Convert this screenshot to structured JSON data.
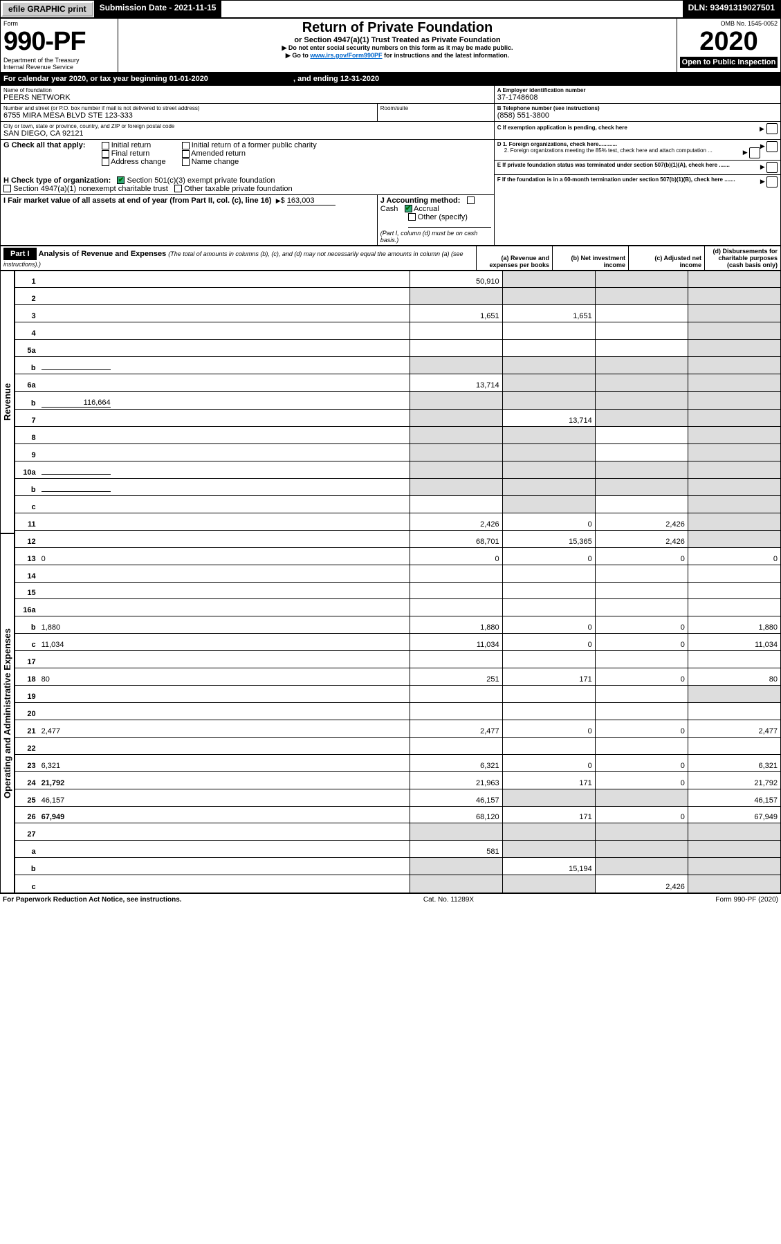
{
  "topbar": {
    "efile": "efile GRAPHIC print",
    "submission": "Submission Date - 2021-11-15",
    "dln": "DLN: 93491319027501"
  },
  "header": {
    "form_word": "Form",
    "form_no": "990-PF",
    "dept": "Department of the Treasury",
    "irs": "Internal Revenue Service",
    "title": "Return of Private Foundation",
    "subtitle": "or Section 4947(a)(1) Trust Treated as Private Foundation",
    "note1": "Do not enter social security numbers on this form as it may be made public.",
    "note2_pre": "Go to ",
    "note2_link": "www.irs.gov/Form990PF",
    "note2_post": " for instructions and the latest information.",
    "omb": "OMB No. 1545-0052",
    "year": "2020",
    "open": "Open to Public Inspection"
  },
  "calendar": {
    "pre": "For calendar year 2020, or tax year beginning ",
    "begin": "01-01-2020",
    "mid": ", and ending ",
    "end": "12-31-2020"
  },
  "entity": {
    "name_label": "Name of foundation",
    "name": "PEERS NETWORK",
    "addr_label": "Number and street (or P.O. box number if mail is not delivered to street address)",
    "addr": "6755 MIRA MESA BLVD STE 123-333",
    "room_label": "Room/suite",
    "room": "",
    "city_label": "City or town, state or province, country, and ZIP or foreign postal code",
    "city": "SAN DIEGO, CA  92121",
    "a_label": "A Employer identification number",
    "a_val": "37-1748608",
    "b_label": "B Telephone number (see instructions)",
    "b_val": "(858) 551-3800",
    "c_label": "C If exemption application is pending, check here",
    "d1": "D 1. Foreign organizations, check here............",
    "d2": "2. Foreign organizations meeting the 85% test, check here and attach computation ...",
    "e": "E If private foundation status was terminated under section 507(b)(1)(A), check here .......",
    "f": "F If the foundation is in a 60-month termination under section 507(b)(1)(B), check here .......",
    "g_label": "G Check all that apply:",
    "g_opts": [
      "Initial return",
      "Final return",
      "Address change",
      "Initial return of a former public charity",
      "Amended return",
      "Name change"
    ],
    "h_label": "H Check type of organization:",
    "h1": "Section 501(c)(3) exempt private foundation",
    "h2": "Section 4947(a)(1) nonexempt charitable trust",
    "h3": "Other taxable private foundation",
    "i_label": "I Fair market value of all assets at end of year (from Part II, col. (c), line 16)",
    "i_val": "163,003",
    "j_label": "J Accounting method:",
    "j_cash": "Cash",
    "j_accrual": "Accrual",
    "j_other": "Other (specify)",
    "j_note": "(Part I, column (d) must be on cash basis.)"
  },
  "part1": {
    "label": "Part I",
    "title": "Analysis of Revenue and Expenses",
    "paren": "(The total of amounts in columns (b), (c), and (d) may not necessarily equal the amounts in column (a) (see instructions).)",
    "cols": {
      "a": "(a) Revenue and expenses per books",
      "b": "(b) Net investment income",
      "c": "(c) Adjusted net income",
      "d": "(d) Disbursements for charitable purposes (cash basis only)"
    }
  },
  "sidebar": {
    "rev": "Revenue",
    "exp": "Operating and Administrative Expenses"
  },
  "rows": [
    {
      "n": "1",
      "d": "",
      "a": "50,910",
      "b": "",
      "c": "",
      "shade_b": true,
      "shade_c": true,
      "shade_d": true
    },
    {
      "n": "2",
      "d": "",
      "a": "",
      "b": "",
      "c": "",
      "shade_a": true,
      "shade_b": true,
      "shade_c": true,
      "shade_d": true
    },
    {
      "n": "3",
      "d": "",
      "a": "1,651",
      "b": "1,651",
      "c": "",
      "shade_d": true
    },
    {
      "n": "4",
      "d": "",
      "a": "",
      "b": "",
      "c": "",
      "shade_d": true
    },
    {
      "n": "5a",
      "d": "",
      "a": "",
      "b": "",
      "c": "",
      "shade_d": true
    },
    {
      "n": "b",
      "d": "",
      "a": "",
      "b": "",
      "c": "",
      "inline": true,
      "shade_a": true,
      "shade_b": true,
      "shade_c": true,
      "shade_d": true
    },
    {
      "n": "6a",
      "d": "",
      "a": "13,714",
      "b": "",
      "c": "",
      "shade_b": true,
      "shade_c": true,
      "shade_d": true
    },
    {
      "n": "b",
      "d": "",
      "a": "",
      "b": "",
      "c": "",
      "inline": true,
      "inline_val": "116,664",
      "shade_a": true,
      "shade_b": true,
      "shade_c": true,
      "shade_d": true
    },
    {
      "n": "7",
      "d": "",
      "a": "",
      "b": "13,714",
      "c": "",
      "shade_a": true,
      "shade_c": true,
      "shade_d": true
    },
    {
      "n": "8",
      "d": "",
      "a": "",
      "b": "",
      "c": "",
      "shade_a": true,
      "shade_b": true,
      "shade_d": true
    },
    {
      "n": "9",
      "d": "",
      "a": "",
      "b": "",
      "c": "",
      "shade_a": true,
      "shade_b": true,
      "shade_d": true
    },
    {
      "n": "10a",
      "d": "",
      "a": "",
      "b": "",
      "c": "",
      "inline": true,
      "shade_a": true,
      "shade_b": true,
      "shade_c": true,
      "shade_d": true
    },
    {
      "n": "b",
      "d": "",
      "a": "",
      "b": "",
      "c": "",
      "inline": true,
      "shade_a": true,
      "shade_b": true,
      "shade_c": true,
      "shade_d": true
    },
    {
      "n": "c",
      "d": "",
      "a": "",
      "b": "",
      "c": "",
      "shade_b": true,
      "shade_d": true
    },
    {
      "n": "11",
      "d": "",
      "a": "2,426",
      "b": "0",
      "c": "2,426",
      "shade_d": true
    },
    {
      "n": "12",
      "d": "",
      "a": "68,701",
      "b": "15,365",
      "c": "2,426",
      "bold": true,
      "shade_d": true
    },
    {
      "n": "13",
      "d": "0",
      "a": "0",
      "b": "0",
      "c": "0"
    },
    {
      "n": "14",
      "d": "",
      "a": "",
      "b": "",
      "c": ""
    },
    {
      "n": "15",
      "d": "",
      "a": "",
      "b": "",
      "c": ""
    },
    {
      "n": "16a",
      "d": "",
      "a": "",
      "b": "",
      "c": ""
    },
    {
      "n": "b",
      "d": "1,880",
      "a": "1,880",
      "b": "0",
      "c": "0"
    },
    {
      "n": "c",
      "d": "11,034",
      "a": "11,034",
      "b": "0",
      "c": "0"
    },
    {
      "n": "17",
      "d": "",
      "a": "",
      "b": "",
      "c": ""
    },
    {
      "n": "18",
      "d": "80",
      "a": "251",
      "b": "171",
      "c": "0"
    },
    {
      "n": "19",
      "d": "",
      "a": "",
      "b": "",
      "c": "",
      "shade_d": true
    },
    {
      "n": "20",
      "d": "",
      "a": "",
      "b": "",
      "c": ""
    },
    {
      "n": "21",
      "d": "2,477",
      "a": "2,477",
      "b": "0",
      "c": "0"
    },
    {
      "n": "22",
      "d": "",
      "a": "",
      "b": "",
      "c": ""
    },
    {
      "n": "23",
      "d": "6,321",
      "a": "6,321",
      "b": "0",
      "c": "0"
    },
    {
      "n": "24",
      "d": "21,792",
      "a": "21,963",
      "b": "171",
      "c": "0",
      "bold": true
    },
    {
      "n": "25",
      "d": "46,157",
      "a": "46,157",
      "b": "",
      "c": "",
      "shade_b": true,
      "shade_c": true
    },
    {
      "n": "26",
      "d": "67,949",
      "a": "68,120",
      "b": "171",
      "c": "0",
      "bold": true
    },
    {
      "n": "27",
      "d": "",
      "a": "",
      "b": "",
      "c": "",
      "shade_a": true,
      "shade_b": true,
      "shade_c": true,
      "shade_d": true
    },
    {
      "n": "a",
      "d": "",
      "a": "581",
      "b": "",
      "c": "",
      "bold": true,
      "shade_b": true,
      "shade_c": true,
      "shade_d": true
    },
    {
      "n": "b",
      "d": "",
      "a": "",
      "b": "15,194",
      "c": "",
      "bold": true,
      "shade_a": true,
      "shade_c": true,
      "shade_d": true
    },
    {
      "n": "c",
      "d": "",
      "a": "",
      "b": "",
      "c": "2,426",
      "bold": true,
      "shade_a": true,
      "shade_b": true,
      "shade_d": true
    }
  ],
  "footer": {
    "left": "For Paperwork Reduction Act Notice, see instructions.",
    "mid": "Cat. No. 11289X",
    "right": "Form 990-PF (2020)"
  }
}
